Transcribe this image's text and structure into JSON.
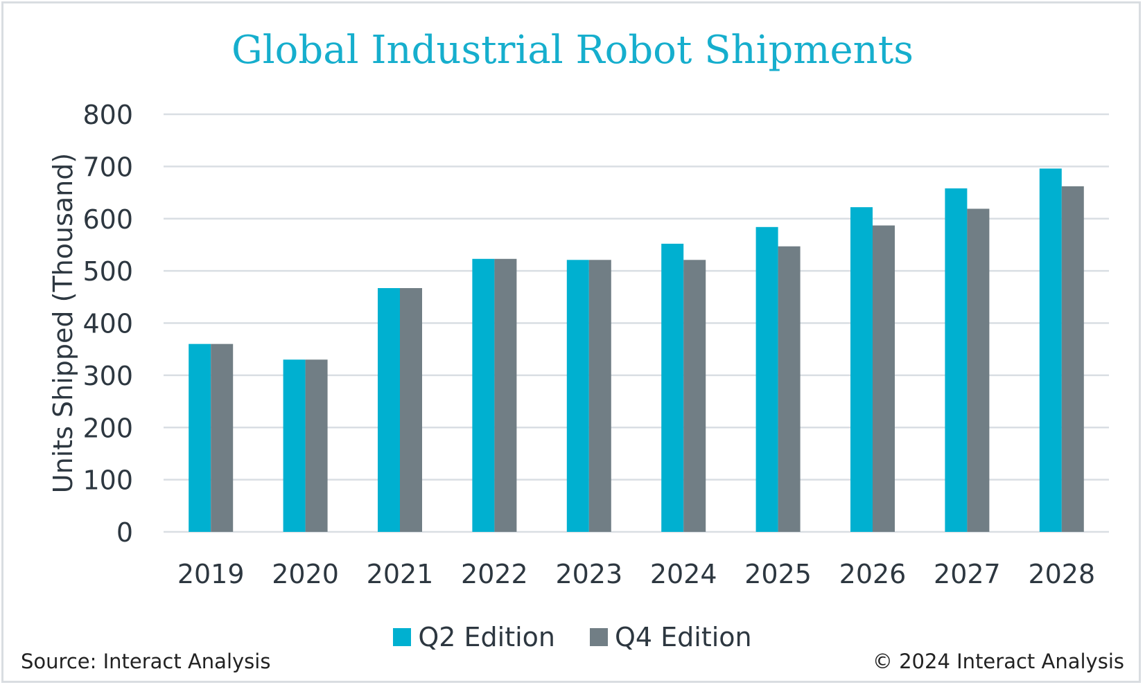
{
  "chart_data": {
    "type": "bar",
    "title": "Global Industrial Robot Shipments",
    "ylabel": "Units Shipped (Thousand)",
    "xlabel": "",
    "ylim": [
      0,
      800
    ],
    "yticks": [
      0,
      100,
      200,
      300,
      400,
      500,
      600,
      700,
      800
    ],
    "grid": true,
    "legend_position": "bottom",
    "categories": [
      "2019",
      "2020",
      "2021",
      "2022",
      "2023",
      "2024",
      "2025",
      "2026",
      "2027",
      "2028"
    ],
    "series": [
      {
        "name": "Q2 Edition",
        "color": "#00b0d0",
        "values": [
          360,
          330,
          467,
          523,
          521,
          552,
          584,
          622,
          658,
          696
        ]
      },
      {
        "name": "Q4 Edition",
        "color": "#717e85",
        "values": [
          360,
          330,
          467,
          523,
          521,
          521,
          547,
          587,
          619,
          662
        ]
      }
    ]
  },
  "footer": {
    "source": "Source: Interact Analysis",
    "copyright": "© 2024 Interact Analysis"
  }
}
